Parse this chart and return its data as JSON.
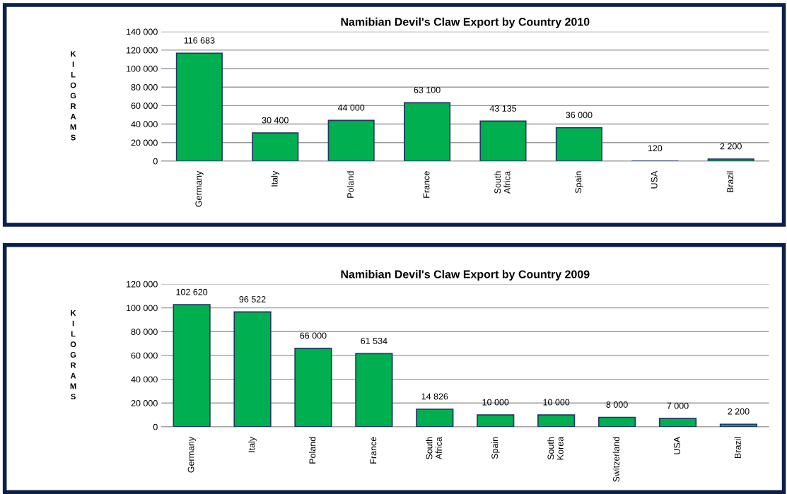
{
  "chart_data": [
    {
      "type": "bar",
      "title": "Namibian Devil's Claw Export by Country 2010",
      "ylabel": "KILOGRAMS",
      "categories": [
        "Germany",
        "Italy",
        "Poland",
        "France",
        "South Africa",
        "Spain",
        "USA",
        "Brazil"
      ],
      "values": [
        116683,
        30400,
        44000,
        63100,
        43135,
        36000,
        120,
        2200
      ],
      "value_labels": [
        "116 683",
        "30 400",
        "44 000",
        "63 100",
        "43 135",
        "36 000",
        "120",
        "2 200"
      ],
      "color": "#00b050",
      "ylim": [
        0,
        140000
      ],
      "yticks": [
        {
          "value": 0,
          "label": "0"
        },
        {
          "value": 20000,
          "label": "20 000"
        },
        {
          "value": 40000,
          "label": "40 000"
        },
        {
          "value": 60000,
          "label": "60 000"
        },
        {
          "value": 80000,
          "label": "80 000"
        },
        {
          "value": 100000,
          "label": "100 000"
        },
        {
          "value": 120000,
          "label": "120 000"
        },
        {
          "value": 140000,
          "label": "140 000"
        }
      ],
      "grid": "y",
      "legend": false
    },
    {
      "type": "bar",
      "title": "Namibian Devil's Claw Export by Country 2009",
      "ylabel": "KILOGRAMS",
      "categories": [
        "Germany",
        "Italy",
        "Poland",
        "France",
        "South Africa",
        "Spain",
        "South Korea",
        "Switzerland",
        "USA",
        "Brazil"
      ],
      "values": [
        102620,
        96522,
        66000,
        61534,
        14826,
        10000,
        10000,
        8000,
        7000,
        2200
      ],
      "value_labels": [
        "102 620",
        "96 522",
        "66 000",
        "61 534",
        "14 826",
        "10 000",
        "10 000",
        "8 000",
        "7 000",
        "2 200"
      ],
      "color": "#00b050",
      "ylim": [
        0,
        120000
      ],
      "yticks": [
        {
          "value": 0,
          "label": "0"
        },
        {
          "value": 20000,
          "label": "20 000"
        },
        {
          "value": 40000,
          "label": "40 000"
        },
        {
          "value": 60000,
          "label": "60 000"
        },
        {
          "value": 80000,
          "label": "80 000"
        },
        {
          "value": 100000,
          "label": "100 000"
        },
        {
          "value": 120000,
          "label": "120 000"
        }
      ],
      "grid": "y",
      "legend": false
    }
  ]
}
